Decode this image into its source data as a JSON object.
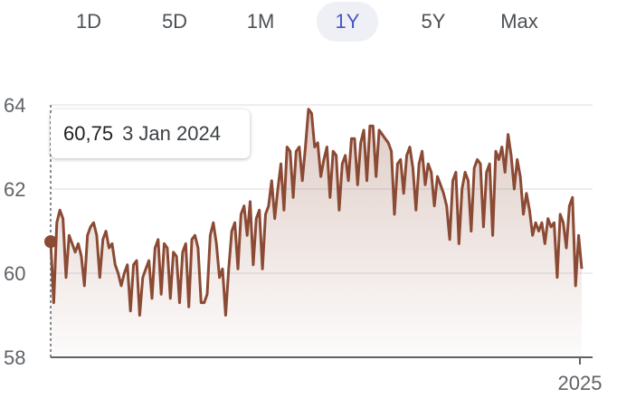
{
  "range_tabs": [
    {
      "label": "1D",
      "active": false
    },
    {
      "label": "5D",
      "active": false
    },
    {
      "label": "1M",
      "active": false
    },
    {
      "label": "1Y",
      "active": true
    },
    {
      "label": "5Y",
      "active": false
    },
    {
      "label": "Max",
      "active": false
    }
  ],
  "tooltip": {
    "value": "60,75",
    "date": "3 Jan 2024"
  },
  "colors": {
    "line": "#8b4a34",
    "accent": "#4a55c8",
    "grid": "#e8e8e8",
    "axis": "#5f6368"
  },
  "chart_data": {
    "type": "area",
    "title": "",
    "xlabel": "",
    "ylabel": "",
    "ylim": [
      58,
      64
    ],
    "y_ticks": [
      58,
      60,
      62,
      64
    ],
    "x_tick_labels": [
      "2025"
    ],
    "grid": true,
    "series": [
      {
        "x_start": "2024-01-03",
        "x_end": "2025-01-03",
        "values": [
          60.75,
          59.3,
          61.2,
          61.5,
          61.3,
          59.9,
          60.9,
          60.7,
          60.5,
          60.7,
          60.4,
          59.7,
          60.9,
          61.1,
          61.2,
          60.9,
          59.9,
          60.8,
          61.0,
          60.6,
          60.7,
          60.2,
          60.0,
          59.7,
          60.0,
          60.2,
          59.1,
          60.2,
          60.3,
          59.0,
          59.9,
          60.1,
          60.3,
          59.4,
          60.6,
          60.8,
          59.5,
          60.7,
          60.6,
          59.4,
          60.5,
          60.4,
          59.3,
          60.5,
          60.7,
          59.2,
          60.8,
          60.9,
          60.6,
          59.3,
          59.3,
          59.5,
          60.9,
          61.2,
          60.7,
          59.9,
          60.1,
          59.0,
          60.1,
          61.0,
          61.2,
          60.1,
          61.4,
          61.6,
          60.9,
          61.7,
          60.2,
          61.3,
          61.5,
          60.1,
          61.4,
          61.6,
          62.2,
          61.3,
          62.0,
          62.6,
          61.5,
          63.0,
          62.9,
          61.8,
          62.9,
          63.0,
          62.2,
          63.0,
          63.9,
          63.8,
          63.0,
          63.1,
          62.3,
          62.7,
          63.0,
          61.8,
          62.9,
          62.8,
          61.5,
          62.6,
          62.8,
          62.2,
          63.2,
          63.2,
          62.1,
          63.1,
          63.4,
          62.2,
          63.5,
          63.5,
          62.3,
          63.4,
          63.3,
          63.2,
          63.1,
          62.9,
          61.4,
          62.6,
          62.7,
          61.9,
          62.8,
          63.0,
          62.5,
          61.5,
          62.6,
          62.9,
          62.1,
          62.6,
          62.4,
          61.6,
          62.3,
          62.1,
          61.9,
          61.6,
          60.8,
          62.2,
          62.4,
          60.7,
          62.0,
          62.4,
          62.2,
          61.0,
          62.5,
          62.7,
          62.6,
          61.1,
          62.4,
          62.6,
          60.9,
          62.9,
          62.7,
          63.0,
          62.4,
          63.3,
          62.8,
          62.0,
          62.7,
          62.3,
          61.4,
          61.9,
          61.5,
          60.9,
          61.2,
          61.0,
          61.2,
          60.7,
          61.3,
          61.1,
          61.2,
          59.9,
          61.4,
          61.2,
          60.6,
          61.6,
          61.8,
          59.7,
          60.9,
          60.1
        ],
        "monthly_x_ticks_hint": "monthly ticks along x-axis"
      }
    ],
    "tick_positions_note": ""
  }
}
